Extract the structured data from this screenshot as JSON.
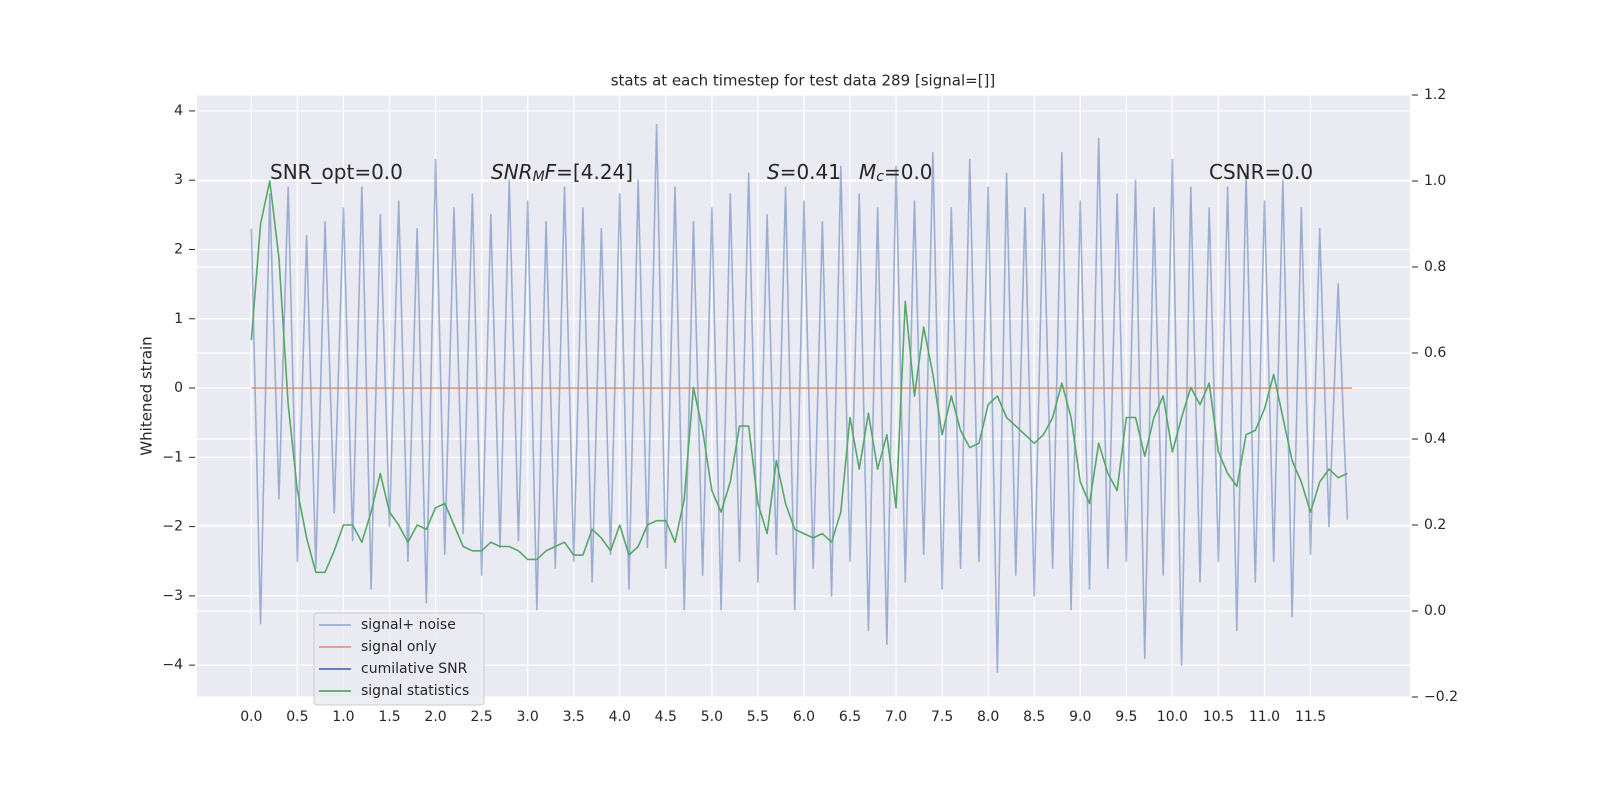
{
  "chart_data": {
    "type": "line",
    "title": "stats at each timestep for test data 289 [signal=[]]",
    "ylabel": "Whitened strain",
    "xlim": [
      -0.59,
      12.58
    ],
    "ylim": [
      -4.46,
      4.23
    ],
    "y2lim": [
      -0.2,
      1.2
    ],
    "grid": true,
    "legend": "lower left",
    "xticks": [
      {
        "value": 0,
        "label": "0.0"
      },
      {
        "value": 0.5,
        "label": "0.5"
      },
      {
        "value": 1,
        "label": "1.0"
      },
      {
        "value": 1.5,
        "label": "1.5"
      },
      {
        "value": 2,
        "label": "2.0"
      },
      {
        "value": 2.5,
        "label": "2.5"
      },
      {
        "value": 3,
        "label": "3.0"
      },
      {
        "value": 3.5,
        "label": "3.5"
      },
      {
        "value": 4,
        "label": "4.0"
      },
      {
        "value": 4.5,
        "label": "4.5"
      },
      {
        "value": 5,
        "label": "5.0"
      },
      {
        "value": 5.5,
        "label": "5.5"
      },
      {
        "value": 6,
        "label": "6.0"
      },
      {
        "value": 6.5,
        "label": "6.5"
      },
      {
        "value": 7,
        "label": "7.0"
      },
      {
        "value": 7.5,
        "label": "7.5"
      },
      {
        "value": 8,
        "label": "8.0"
      },
      {
        "value": 8.5,
        "label": "8.5"
      },
      {
        "value": 9,
        "label": "9.0"
      },
      {
        "value": 9.5,
        "label": "9.5"
      },
      {
        "value": 10,
        "label": "10.0"
      },
      {
        "value": 10.5,
        "label": "10.5"
      },
      {
        "value": 11,
        "label": "11.0"
      },
      {
        "value": 11.5,
        "label": "11.5"
      }
    ],
    "yticks": [
      {
        "value": -4,
        "label": "−4"
      },
      {
        "value": -3,
        "label": "−3"
      },
      {
        "value": -2,
        "label": "−2"
      },
      {
        "value": -1,
        "label": "−1"
      },
      0,
      1,
      2,
      3,
      4
    ],
    "y2ticks": [
      {
        "value": -0.2,
        "label": "−0.2"
      },
      {
        "value": 0,
        "label": "0.0"
      },
      0.2,
      0.4,
      0.6,
      0.8,
      {
        "value": 1,
        "label": "1.0"
      },
      1.2
    ],
    "x": [
      0,
      0.1,
      0.2,
      0.3,
      0.4,
      0.5,
      0.6,
      0.7,
      0.8,
      0.9,
      1,
      1.1,
      1.2,
      1.3,
      1.4,
      1.5,
      1.6,
      1.7,
      1.8,
      1.9,
      2,
      2.1,
      2.2,
      2.3,
      2.4,
      2.5,
      2.6,
      2.7,
      2.8,
      2.9,
      3,
      3.1,
      3.2,
      3.3,
      3.4,
      3.5,
      3.6,
      3.7,
      3.8,
      3.9,
      4,
      4.1,
      4.2,
      4.3,
      4.4,
      4.5,
      4.6,
      4.7,
      4.8,
      4.9,
      5,
      5.1,
      5.2,
      5.3,
      5.4,
      5.5,
      5.6,
      5.7,
      5.8,
      5.9,
      6,
      6.1,
      6.2,
      6.3,
      6.4,
      6.5,
      6.6,
      6.7,
      6.8,
      6.9,
      7,
      7.1,
      7.2,
      7.3,
      7.4,
      7.5,
      7.6,
      7.7,
      7.8,
      7.9,
      8,
      8.1,
      8.2,
      8.3,
      8.4,
      8.5,
      8.6,
      8.7,
      8.8,
      8.9,
      9,
      9.1,
      9.2,
      9.3,
      9.4,
      9.5,
      9.6,
      9.7,
      9.8,
      9.9,
      10,
      10.1,
      10.2,
      10.3,
      10.4,
      10.5,
      10.6,
      10.7,
      10.8,
      10.9,
      11,
      11.1,
      11.2,
      11.3,
      11.4,
      11.5,
      11.6,
      11.7,
      11.8,
      11.9
    ],
    "series": [
      {
        "name": "signal+ noise",
        "color": "#4c72b0",
        "alpha": 0.5,
        "values": [
          2.3,
          -3.4,
          2.8,
          -1.6,
          2.9,
          -2.5,
          2.2,
          -2.6,
          2.4,
          -1.8,
          2.6,
          -2.2,
          2.9,
          -2.9,
          2.5,
          -2.0,
          2.7,
          -2.5,
          2.3,
          -3.1,
          3.3,
          -2.4,
          2.6,
          -2.1,
          2.8,
          -2.7,
          2.5,
          -2.3,
          3.0,
          -2.2,
          2.7,
          -3.2,
          2.4,
          -2.6,
          2.9,
          -2.5,
          2.6,
          -2.8,
          2.3,
          -2.4,
          2.8,
          -2.9,
          3.0,
          -2.3,
          3.8,
          -2.6,
          2.9,
          -3.2,
          2.4,
          -2.7,
          2.6,
          -3.2,
          2.8,
          -2.5,
          3.1,
          -2.8,
          2.5,
          -2.4,
          2.9,
          -3.2,
          2.7,
          -2.6,
          2.4,
          -3.0,
          3.2,
          -2.5,
          2.8,
          -3.5,
          2.6,
          -3.7,
          3.2,
          -2.8,
          2.7,
          -2.4,
          3.4,
          -2.9,
          2.6,
          -2.6,
          3.3,
          -2.5,
          2.9,
          -4.1,
          3.1,
          -2.7,
          2.6,
          -3.0,
          2.8,
          -2.6,
          3.4,
          -3.2,
          2.7,
          -2.9,
          3.6,
          -2.6,
          2.8,
          -2.5,
          3.0,
          -3.9,
          2.6,
          -2.7,
          3.3,
          -4.0,
          2.9,
          -2.8,
          2.6,
          -2.5,
          2.9,
          -3.5,
          3.1,
          -2.8,
          2.7,
          -2.5,
          3.0,
          -3.3,
          2.6,
          -2.4,
          2.3,
          -2.0,
          1.5,
          -1.9
        ]
      },
      {
        "name": "signal only",
        "color": "#dd8452",
        "alpha": 0.8,
        "x": [
          0,
          11.95
        ],
        "values": [
          0,
          0
        ]
      },
      {
        "name": "cumilative SNR",
        "color": "#4c72b0",
        "alpha": 1,
        "x": [],
        "values": []
      },
      {
        "name": "signal statistics",
        "color": "#55a868",
        "alpha": 1,
        "axis": "y2",
        "values": [
          0.63,
          0.9,
          1.0,
          0.82,
          0.48,
          0.28,
          0.17,
          0.09,
          0.09,
          0.14,
          0.2,
          0.2,
          0.16,
          0.23,
          0.32,
          0.23,
          0.2,
          0.16,
          0.2,
          0.19,
          0.24,
          0.25,
          0.2,
          0.15,
          0.14,
          0.14,
          0.16,
          0.15,
          0.15,
          0.14,
          0.12,
          0.12,
          0.14,
          0.15,
          0.16,
          0.13,
          0.13,
          0.19,
          0.17,
          0.14,
          0.2,
          0.13,
          0.15,
          0.2,
          0.21,
          0.21,
          0.16,
          0.26,
          0.52,
          0.42,
          0.28,
          0.23,
          0.3,
          0.43,
          0.43,
          0.25,
          0.18,
          0.35,
          0.25,
          0.19,
          0.18,
          0.17,
          0.18,
          0.16,
          0.23,
          0.45,
          0.33,
          0.46,
          0.33,
          0.41,
          0.24,
          0.72,
          0.5,
          0.66,
          0.55,
          0.41,
          0.5,
          0.42,
          0.38,
          0.39,
          0.48,
          0.5,
          0.45,
          0.43,
          0.41,
          0.39,
          0.41,
          0.45,
          0.53,
          0.45,
          0.3,
          0.25,
          0.39,
          0.32,
          0.28,
          0.45,
          0.45,
          0.36,
          0.45,
          0.5,
          0.37,
          0.45,
          0.52,
          0.48,
          0.53,
          0.37,
          0.32,
          0.29,
          0.41,
          0.42,
          0.47,
          0.55,
          0.45,
          0.35,
          0.3,
          0.23,
          0.3,
          0.33,
          0.31,
          0.32
        ]
      }
    ],
    "annotations": [
      {
        "parts": [
          {
            "text": "SNR_opt=0.0"
          }
        ]
      },
      {
        "parts": [
          {
            "text": "SNR",
            "style": "math"
          },
          {
            "text": "M",
            "style": "math-sub"
          },
          {
            "text": "F",
            "style": "math"
          },
          {
            "text": "=[4.24]"
          }
        ]
      },
      {
        "parts": [
          {
            "text": "S",
            "style": "math"
          },
          {
            "text": "=0.41"
          }
        ]
      },
      {
        "parts": [
          {
            "text": "M",
            "style": "math"
          },
          {
            "text": "c",
            "style": "math-sub"
          },
          {
            "text": "=0.0"
          }
        ]
      },
      {
        "parts": [
          {
            "text": "CSNR=0.0"
          }
        ]
      }
    ]
  }
}
